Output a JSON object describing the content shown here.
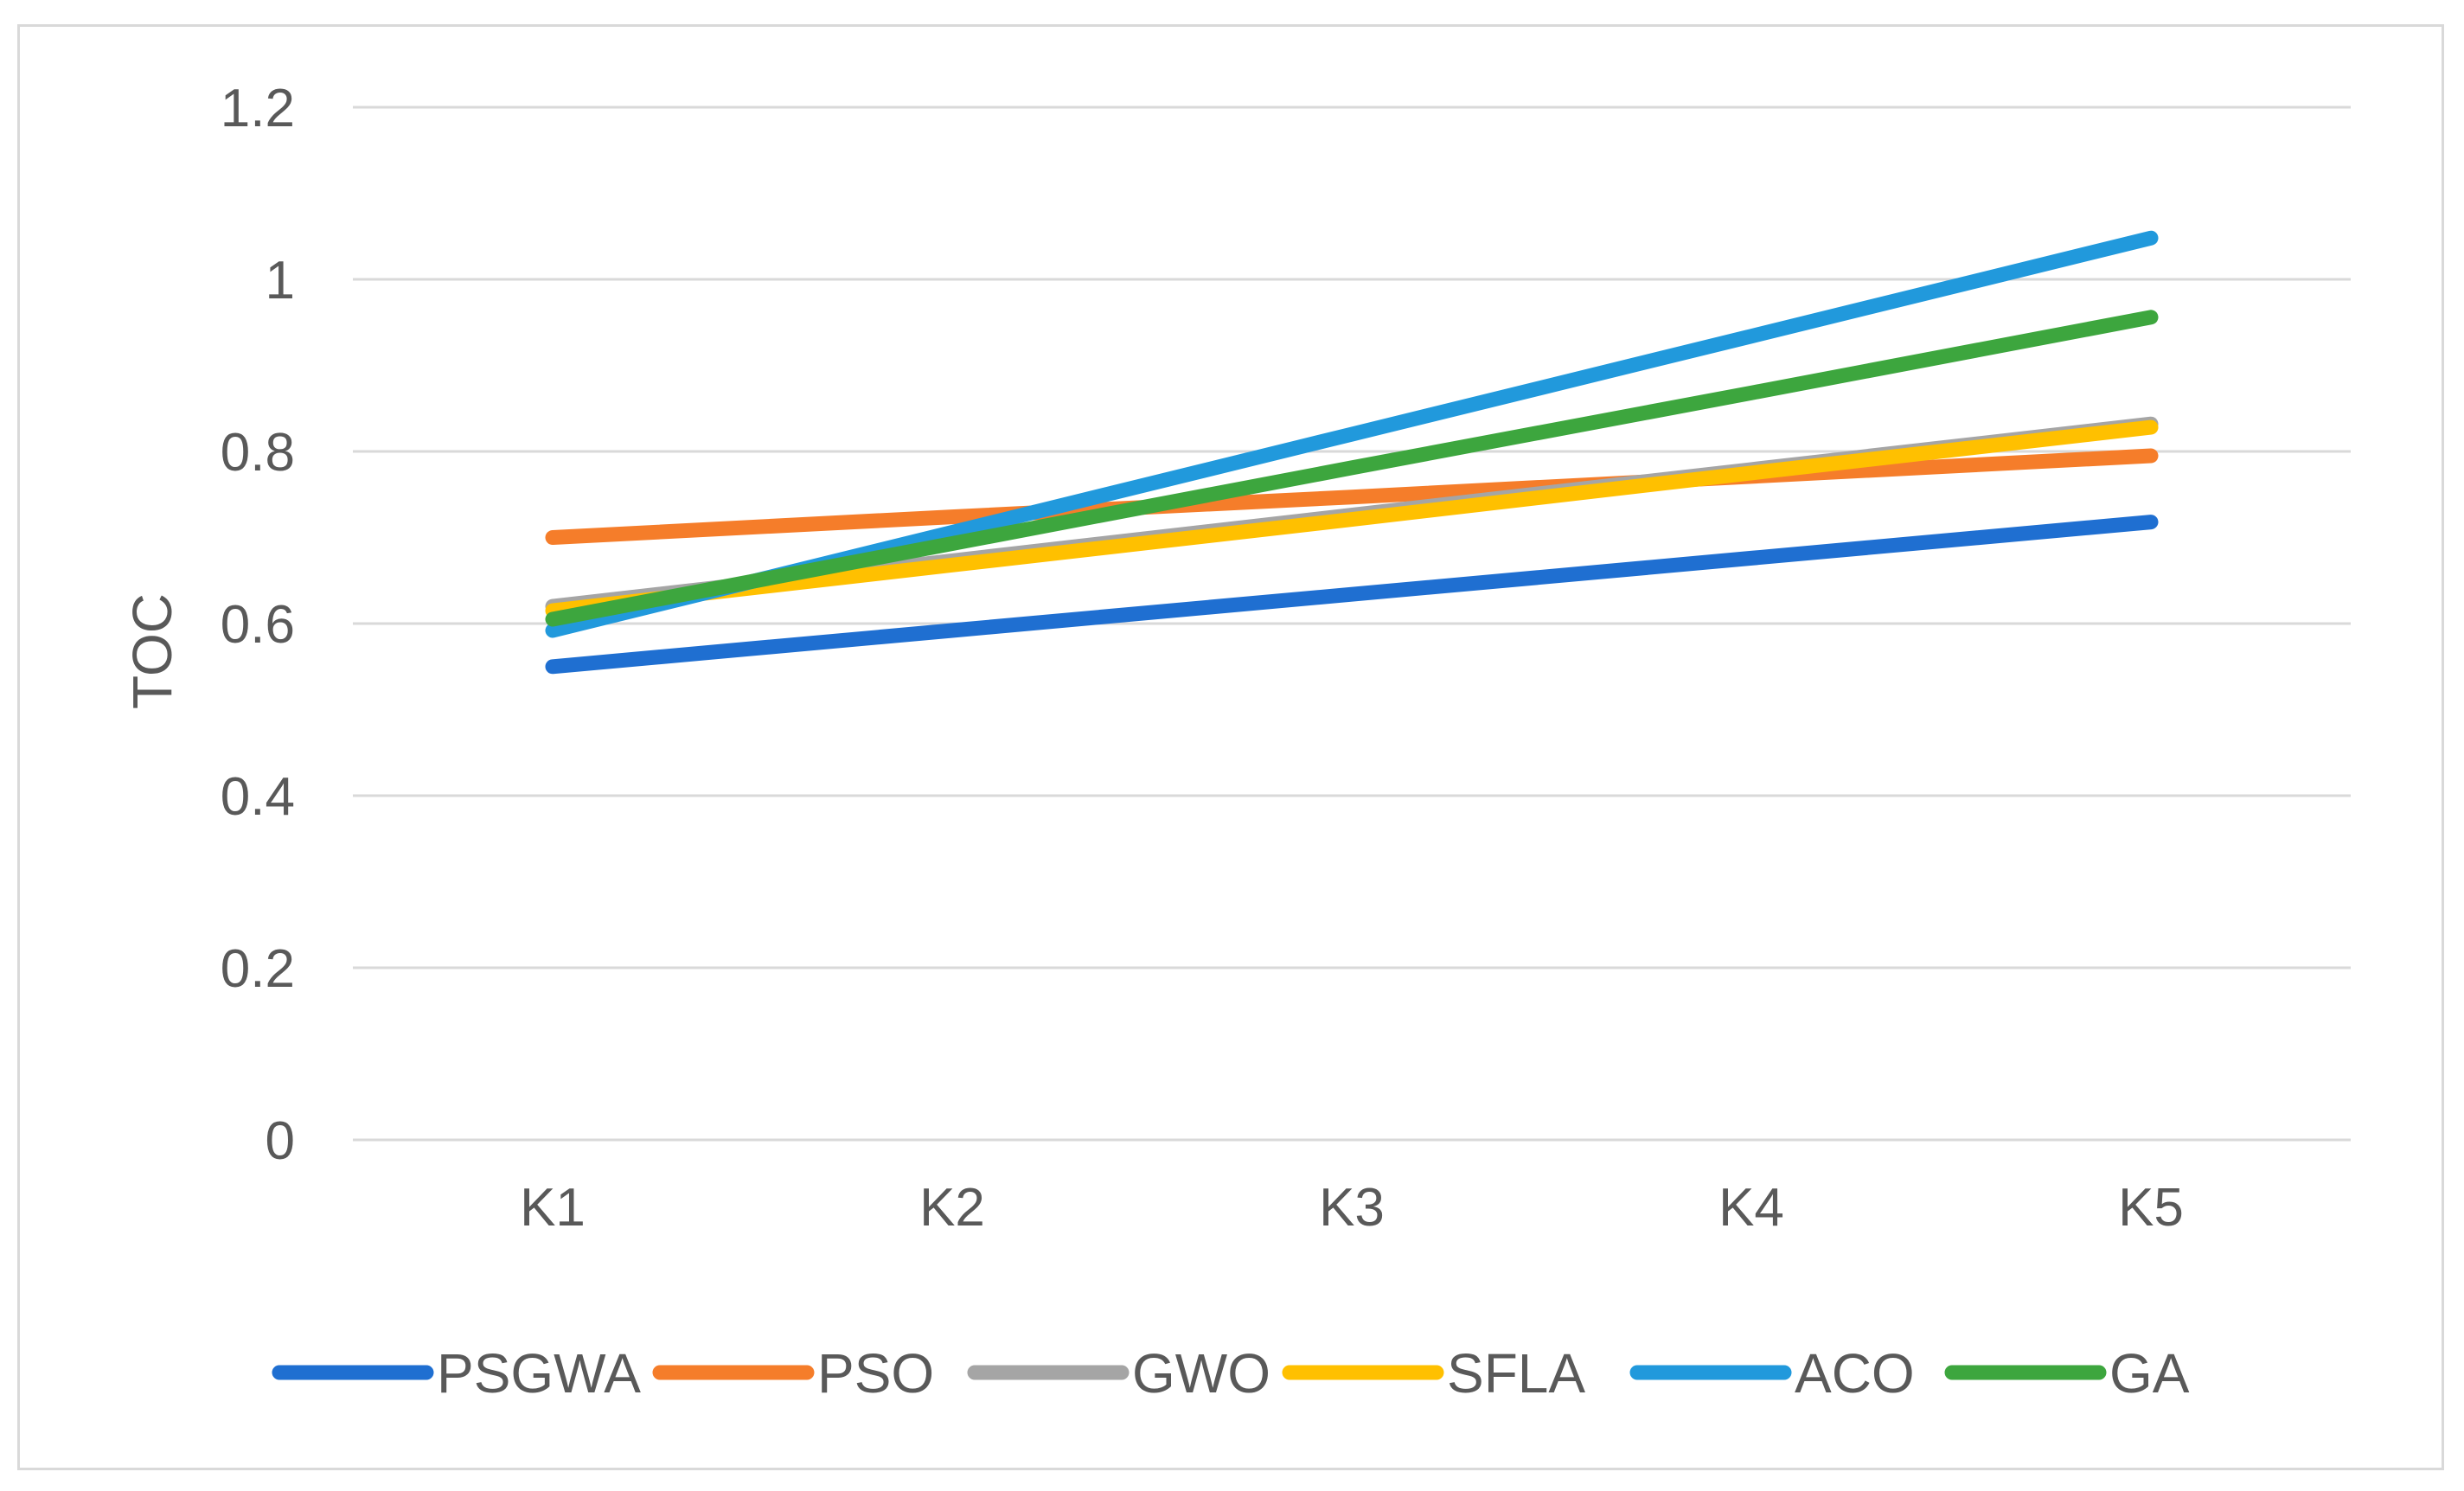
{
  "chart_data": {
    "type": "line",
    "title": "",
    "xlabel": "",
    "ylabel": "TOC",
    "ylim": [
      0,
      1.2
    ],
    "yticks": [
      "0",
      "0.2",
      "0.4",
      "0.6",
      "0.8",
      "1",
      "1.2"
    ],
    "ytick_values": [
      0,
      0.2,
      0.4,
      0.6,
      0.8,
      1.0,
      1.2
    ],
    "categories": [
      "K1",
      "K2",
      "K3",
      "K4",
      "K5"
    ],
    "grid": true,
    "legend_position": "bottom",
    "series": [
      {
        "name": "PSGWA",
        "color": "#1f6fd1",
        "values": [
          0.55,
          0.592,
          0.634,
          0.676,
          0.718
        ]
      },
      {
        "name": "PSO",
        "color": "#f57d2a",
        "values": [
          0.7,
          0.724,
          0.747,
          0.771,
          0.795
        ]
      },
      {
        "name": "GWO",
        "color": "#a5a5a5",
        "values": [
          0.62,
          0.673,
          0.726,
          0.779,
          0.832
        ]
      },
      {
        "name": "SFLA",
        "color": "#ffc000",
        "values": [
          0.615,
          0.668,
          0.721,
          0.775,
          0.828
        ]
      },
      {
        "name": "ACO",
        "color": "#2199dc",
        "values": [
          0.592,
          0.706,
          0.82,
          0.934,
          1.048
        ]
      },
      {
        "name": "GA",
        "color": "#3da63e",
        "values": [
          0.605,
          0.693,
          0.781,
          0.868,
          0.956
        ]
      }
    ]
  }
}
